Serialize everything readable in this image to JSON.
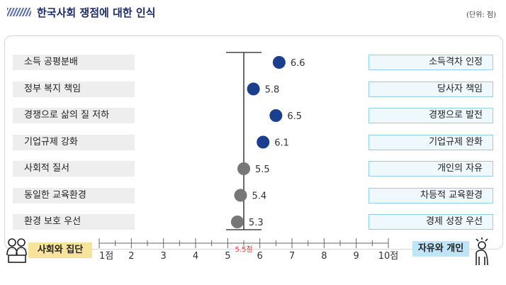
{
  "header": {
    "title": "한국사회 쟁점에 대한 인식",
    "unit": "(단위: 점)"
  },
  "legend": {
    "left": "사회와 집단",
    "right": "자유와 개인"
  },
  "midpoint_label": "5.5점",
  "colors": {
    "title": "#1b2a6b",
    "dot_blue": "#1b3f8f",
    "dot_gray": "#777777",
    "midpoint": "#e04040"
  },
  "chart_data": {
    "type": "scatter",
    "title": "한국사회 쟁점에 대한 인식",
    "xlim": [
      1,
      10
    ],
    "xticks": [
      "1점",
      "2",
      "3",
      "4",
      "5",
      "6",
      "7",
      "8",
      "9",
      "10점"
    ],
    "midpoint": 5.5,
    "items": [
      {
        "left": "소득 공평분배",
        "right": "소득격차 인정",
        "value": 6.6,
        "label": "6.6",
        "color": "blue"
      },
      {
        "left": "정부 복지 책임",
        "right": "당사자 책임",
        "value": 5.8,
        "label": "5.8",
        "color": "blue"
      },
      {
        "left": "경쟁으로 삶의 질 저하",
        "right": "경쟁으로 발전",
        "value": 6.5,
        "label": "6.5",
        "color": "blue"
      },
      {
        "left": "기업규제 강화",
        "right": "기업규제 완화",
        "value": 6.1,
        "label": "6.1",
        "color": "blue"
      },
      {
        "left": "사회적 질서",
        "right": "개인의 자유",
        "value": 5.5,
        "label": "5.5",
        "color": "gray"
      },
      {
        "left": "동일한 교육환경",
        "right": "차등적 교육환경",
        "value": 5.4,
        "label": "5.4",
        "color": "gray"
      },
      {
        "left": "환경 보호 우선",
        "right": "경제 성장 우선",
        "value": 5.3,
        "label": "5.3",
        "color": "gray"
      }
    ]
  }
}
